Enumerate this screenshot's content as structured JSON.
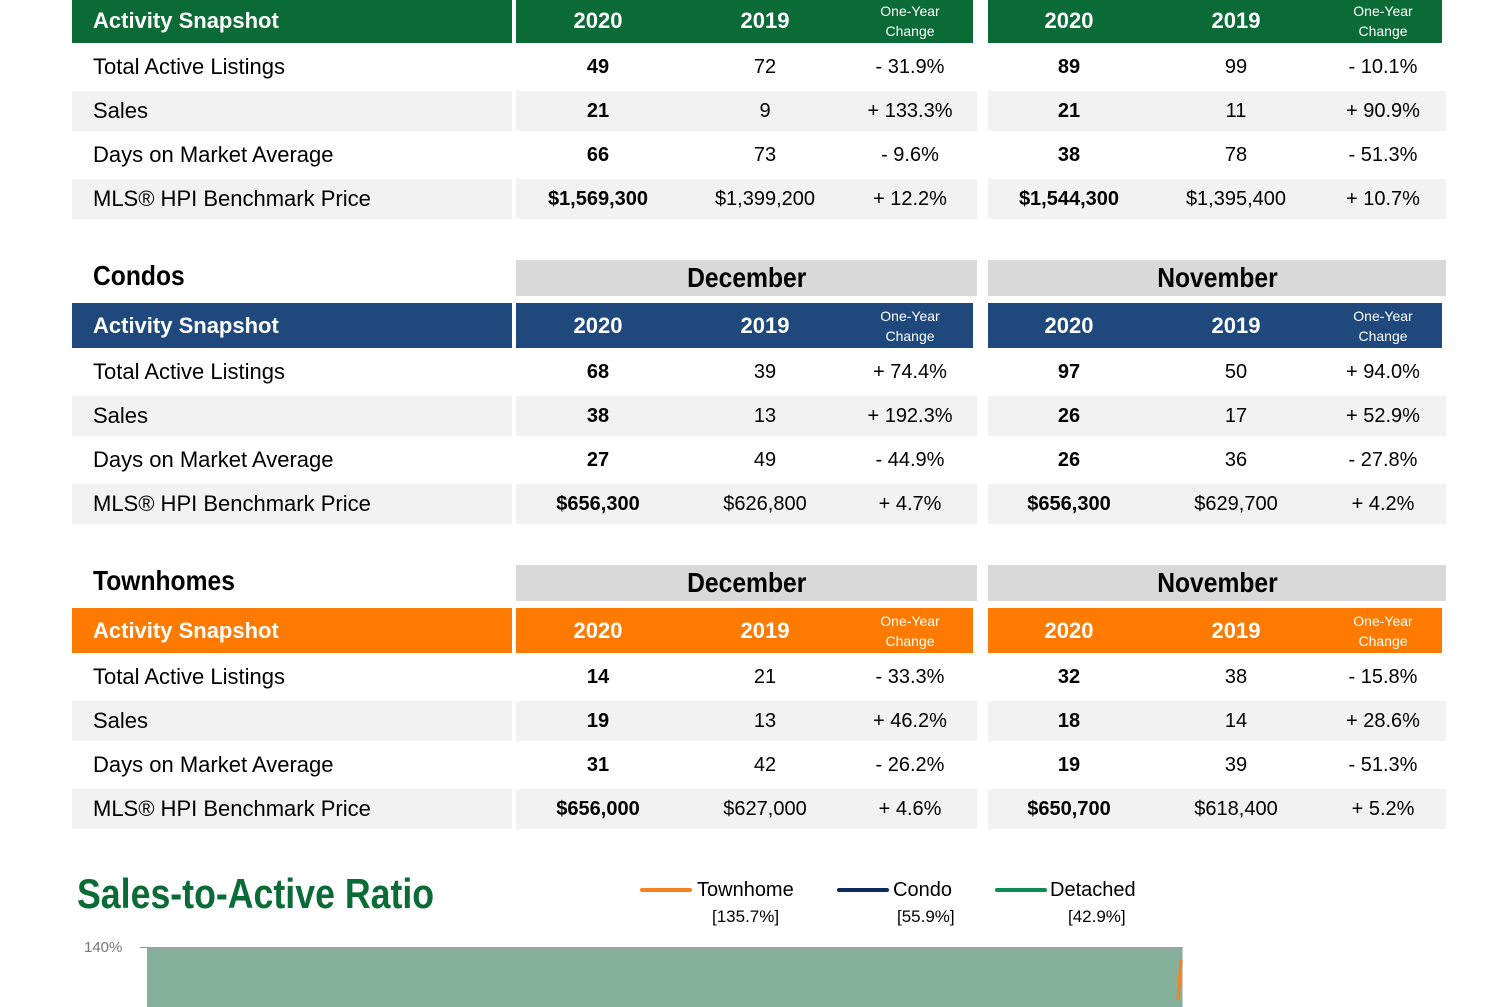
{
  "sections": [
    {
      "title": "",
      "months": [
        "",
        ""
      ],
      "color": "#0b6b36",
      "header": "Activity Snapshot",
      "years": [
        "2020",
        "2019"
      ],
      "change_label": [
        "One-Year",
        "Change"
      ],
      "rows": [
        {
          "label": "Total Active Listings",
          "dec": [
            "49",
            "72",
            "- 31.9%"
          ],
          "nov": [
            "89",
            "99",
            "- 10.1%"
          ]
        },
        {
          "label": "Sales",
          "dec": [
            "21",
            "9",
            "+ 133.3%"
          ],
          "nov": [
            "21",
            "11",
            "+ 90.9%"
          ]
        },
        {
          "label": "Days on Market Average",
          "dec": [
            "66",
            "73",
            "- 9.6%"
          ],
          "nov": [
            "38",
            "78",
            "- 51.3%"
          ]
        },
        {
          "label": "MLS® HPI Benchmark Price",
          "dec": [
            "$1,569,300",
            "$1,399,200",
            "+ 12.2%"
          ],
          "nov": [
            "$1,544,300",
            "$1,395,400",
            "+ 10.7%"
          ]
        }
      ]
    },
    {
      "title": "Condos",
      "months": [
        "December",
        "November"
      ],
      "color": "#1f497d",
      "header": "Activity Snapshot",
      "years": [
        "2020",
        "2019"
      ],
      "change_label": [
        "One-Year",
        "Change"
      ],
      "rows": [
        {
          "label": "Total Active Listings",
          "dec": [
            "68",
            "39",
            "+ 74.4%"
          ],
          "nov": [
            "97",
            "50",
            "+ 94.0%"
          ]
        },
        {
          "label": "Sales",
          "dec": [
            "38",
            "13",
            "+ 192.3%"
          ],
          "nov": [
            "26",
            "17",
            "+ 52.9%"
          ]
        },
        {
          "label": "Days on Market Average",
          "dec": [
            "27",
            "49",
            "- 44.9%"
          ],
          "nov": [
            "26",
            "36",
            "- 27.8%"
          ]
        },
        {
          "label": "MLS® HPI Benchmark Price",
          "dec": [
            "$656,300",
            "$626,800",
            "+ 4.7%"
          ],
          "nov": [
            "$656,300",
            "$629,700",
            "+ 4.2%"
          ]
        }
      ]
    },
    {
      "title": "Townhomes",
      "months": [
        "December",
        "November"
      ],
      "color": "#ff7a00",
      "header": "Activity Snapshot",
      "years": [
        "2020",
        "2019"
      ],
      "change_label": [
        "One-Year",
        "Change"
      ],
      "rows": [
        {
          "label": "Total Active Listings",
          "dec": [
            "14",
            "21",
            "- 33.3%"
          ],
          "nov": [
            "32",
            "38",
            "- 15.8%"
          ]
        },
        {
          "label": "Sales",
          "dec": [
            "19",
            "13",
            "+ 46.2%"
          ],
          "nov": [
            "18",
            "14",
            "+ 28.6%"
          ]
        },
        {
          "label": "Days on Market Average",
          "dec": [
            "31",
            "42",
            "- 26.2%"
          ],
          "nov": [
            "19",
            "39",
            "- 51.3%"
          ]
        },
        {
          "label": "MLS® HPI Benchmark Price",
          "dec": [
            "$656,000",
            "$627,000",
            "+ 4.6%"
          ],
          "nov": [
            "$650,700",
            "$618,400",
            "+ 5.2%"
          ]
        }
      ]
    }
  ],
  "chart": {
    "title": "Sales-to-Active Ratio",
    "y_tick": "140%",
    "fill_color": "#85b09b",
    "legend": [
      {
        "name": "Townhome",
        "value": "[135.7%]",
        "color": "#f5821f"
      },
      {
        "name": "Condo",
        "value": "[55.9%]",
        "color": "#0d2a5c"
      },
      {
        "name": "Detached",
        "value": "[42.9%]",
        "color": "#0f8a4f"
      }
    ]
  }
}
